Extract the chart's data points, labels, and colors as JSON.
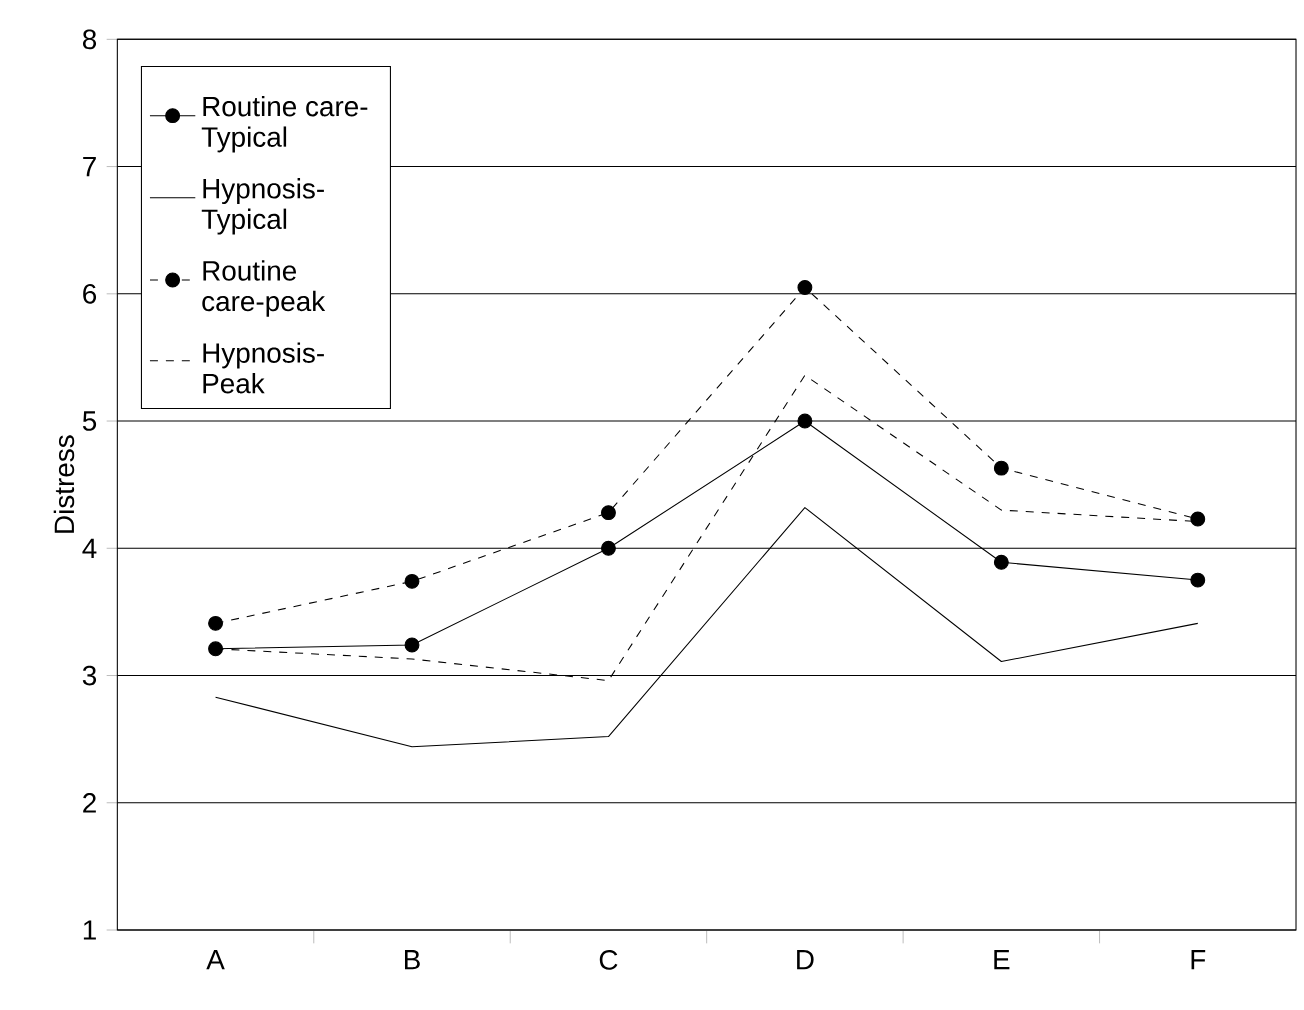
{
  "chart_data": {
    "type": "line",
    "ylabel": "Distress",
    "categories": [
      "A",
      "B",
      "C",
      "D",
      "E",
      "F"
    ],
    "series": [
      {
        "name": "Routine care- Typical",
        "color": "#000000",
        "marker": "circle",
        "line_style": "solid",
        "values": [
          3.21,
          3.24,
          4.0,
          5.0,
          3.89,
          3.75
        ]
      },
      {
        "name": "Hypnosis-Typical",
        "color": "#000000",
        "marker": "none",
        "line_style": "solid",
        "values": [
          2.83,
          2.44,
          2.52,
          4.32,
          3.11,
          3.41
        ]
      },
      {
        "name": "Routine care-peak",
        "color": "#000000",
        "marker": "circle",
        "line_style": "dashed",
        "values": [
          3.41,
          3.74,
          4.28,
          6.05,
          4.63,
          4.23
        ]
      },
      {
        "name": "Hypnosis-Peak",
        "color": "#000000",
        "marker": "none",
        "line_style": "dashed",
        "values": [
          3.21,
          3.13,
          2.96,
          5.36,
          4.3,
          4.21
        ]
      }
    ],
    "ylim": [
      1,
      8
    ],
    "yticks": [
      1,
      2,
      3,
      4,
      5,
      6,
      7,
      8
    ],
    "grid": "y",
    "legend": "top left"
  }
}
